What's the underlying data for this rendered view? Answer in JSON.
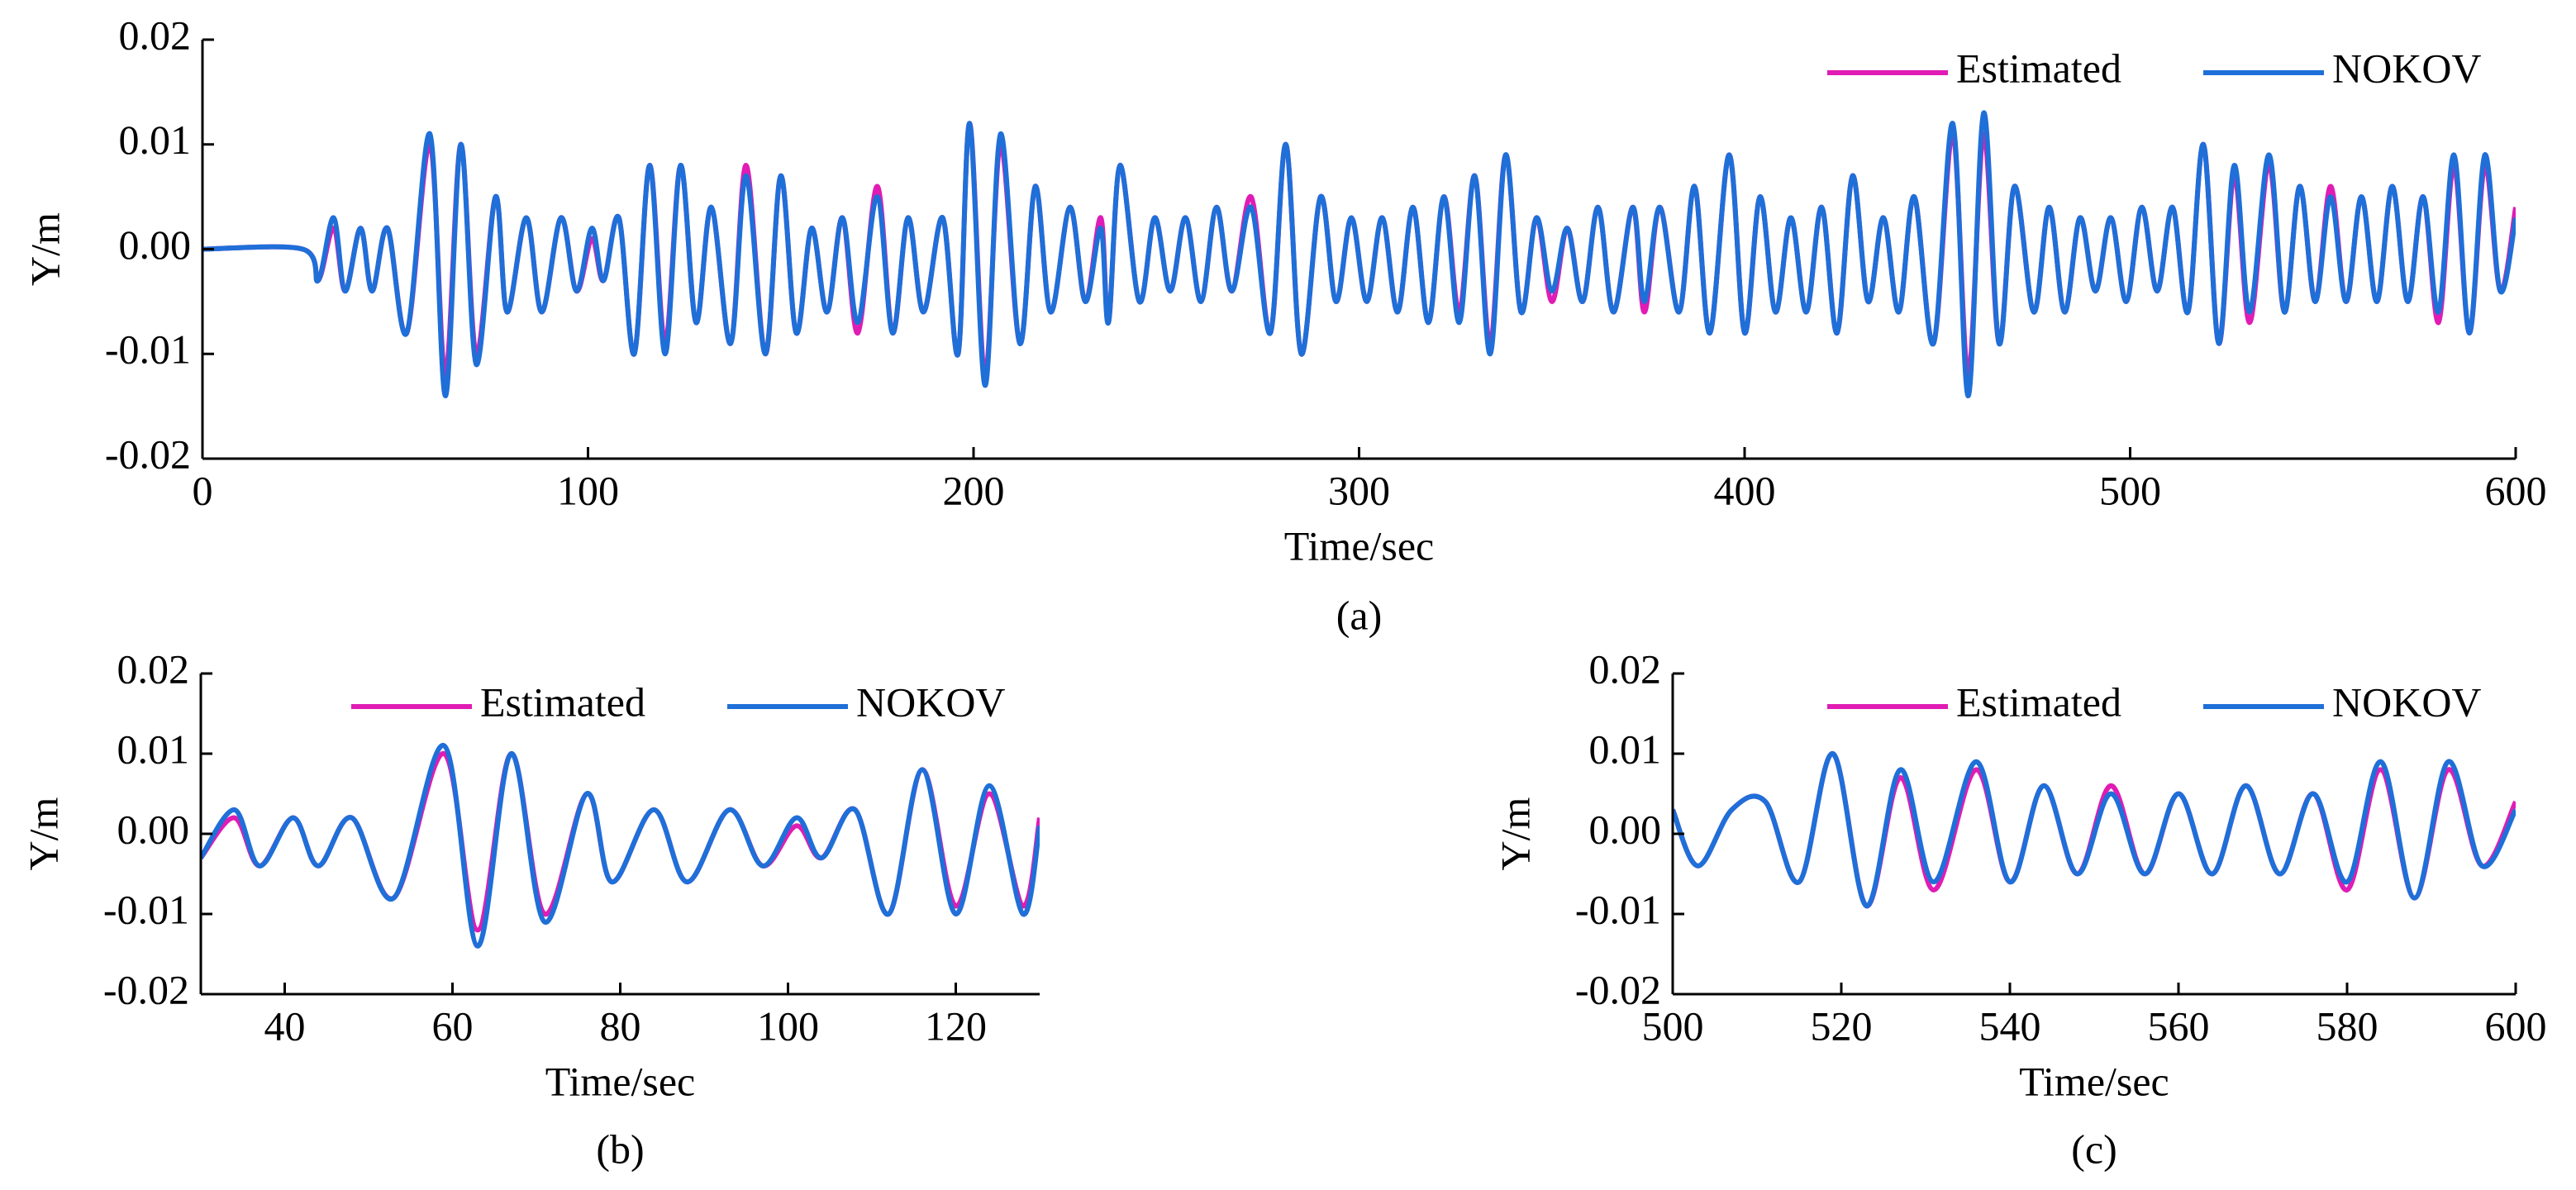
{
  "chart_data": [
    {
      "type": "line",
      "caption": "(a)",
      "xlabel": "Time/sec",
      "ylabel": "Y/m",
      "xlim": [
        0,
        600
      ],
      "xticks": [
        0,
        100,
        200,
        300,
        400,
        500,
        600
      ],
      "ylim": [
        -0.02,
        0.02
      ],
      "yticks": [
        -0.02,
        -0.01,
        {
          "value": 0,
          "label": "0.00"
        },
        0.01,
        0.02
      ],
      "x": [
        0,
        26,
        30,
        34,
        37,
        41,
        44,
        48,
        53,
        59,
        63,
        67,
        71,
        76,
        79,
        84,
        88,
        93,
        97,
        101,
        104,
        108,
        112,
        116,
        120,
        124,
        128,
        132,
        137,
        141,
        146,
        150,
        154,
        158,
        162,
        166,
        170,
        175,
        179,
        183,
        187,
        192,
        196,
        199,
        203,
        207,
        212,
        216,
        220,
        225,
        229,
        233,
        235,
        238,
        243,
        247,
        251,
        255,
        259,
        263,
        267,
        272,
        277,
        281,
        285,
        290,
        294,
        298,
        302,
        306,
        310,
        314,
        318,
        322,
        326,
        330,
        334,
        338,
        342,
        346,
        350,
        354,
        358,
        362,
        366,
        371,
        374,
        378,
        383,
        387,
        391,
        396,
        400,
        404,
        408,
        412,
        416,
        420,
        424,
        428,
        432,
        436,
        440,
        444,
        449,
        454,
        458,
        462,
        466,
        470,
        475,
        479,
        483,
        487,
        491,
        495,
        499,
        503,
        507,
        511,
        515,
        519,
        523,
        527,
        531,
        536,
        540,
        544,
        548,
        552,
        556,
        560,
        564,
        568,
        572,
        576,
        580,
        584,
        588,
        592,
        596,
        600
      ],
      "series": [
        {
          "name": "Estimated",
          "color": "#e01cb4",
          "values": [
            0,
            0,
            -0.003,
            0.002,
            -0.004,
            0.002,
            -0.004,
            0.002,
            -0.008,
            0.01,
            -0.012,
            0.01,
            -0.01,
            0.005,
            -0.006,
            0.003,
            -0.006,
            0.003,
            -0.004,
            0.001,
            -0.003,
            0.003,
            -0.01,
            0.008,
            -0.009,
            0.008,
            -0.007,
            0.004,
            -0.009,
            0.008,
            -0.01,
            0.007,
            -0.008,
            0.002,
            -0.006,
            0.003,
            -0.008,
            0.006,
            -0.008,
            0.003,
            -0.006,
            0.003,
            -0.01,
            0.012,
            -0.012,
            0.01,
            -0.009,
            0.006,
            -0.006,
            0.004,
            -0.005,
            0.003,
            -0.007,
            0.008,
            -0.005,
            0.003,
            -0.004,
            0.003,
            -0.005,
            0.004,
            -0.004,
            0.005,
            -0.008,
            0.01,
            -0.01,
            0.005,
            -0.005,
            0.003,
            -0.005,
            0.003,
            -0.006,
            0.004,
            -0.007,
            0.005,
            -0.006,
            0.007,
            -0.009,
            0.009,
            -0.006,
            0.003,
            -0.005,
            0.002,
            -0.005,
            0.004,
            -0.006,
            0.004,
            -0.006,
            0.004,
            -0.006,
            0.006,
            -0.008,
            0.009,
            -0.008,
            0.005,
            -0.006,
            0.003,
            -0.006,
            0.004,
            -0.008,
            0.007,
            -0.005,
            0.003,
            -0.006,
            0.005,
            -0.009,
            0.011,
            -0.012,
            0.011,
            -0.009,
            0.006,
            -0.006,
            0.004,
            -0.006,
            0.003,
            -0.004,
            0.003,
            -0.005,
            0.004,
            -0.004,
            0.004,
            -0.006,
            0.01,
            -0.009,
            0.007,
            -0.007,
            0.008,
            -0.006,
            0.006,
            -0.005,
            0.006,
            -0.005,
            0.005,
            -0.005,
            0.006,
            -0.005,
            0.005,
            -0.007,
            0.008,
            -0.008,
            0.008,
            -0.004,
            0.004
          ]
        },
        {
          "name": "NOKOV",
          "color": "#1f6fd8",
          "values": [
            0,
            0,
            -0.003,
            0.003,
            -0.004,
            0.002,
            -0.004,
            0.002,
            -0.008,
            0.011,
            -0.014,
            0.01,
            -0.011,
            0.005,
            -0.006,
            0.003,
            -0.006,
            0.003,
            -0.004,
            0.002,
            -0.003,
            0.003,
            -0.01,
            0.008,
            -0.01,
            0.008,
            -0.007,
            0.004,
            -0.009,
            0.007,
            -0.01,
            0.007,
            -0.008,
            0.002,
            -0.006,
            0.003,
            -0.007,
            0.005,
            -0.008,
            0.003,
            -0.006,
            0.003,
            -0.01,
            0.012,
            -0.013,
            0.011,
            -0.009,
            0.006,
            -0.006,
            0.004,
            -0.005,
            0.002,
            -0.007,
            0.008,
            -0.005,
            0.003,
            -0.004,
            0.003,
            -0.005,
            0.004,
            -0.004,
            0.004,
            -0.008,
            0.01,
            -0.01,
            0.005,
            -0.005,
            0.003,
            -0.005,
            0.003,
            -0.006,
            0.004,
            -0.007,
            0.005,
            -0.007,
            0.007,
            -0.01,
            0.009,
            -0.006,
            0.003,
            -0.004,
            0.002,
            -0.005,
            0.004,
            -0.006,
            0.004,
            -0.005,
            0.004,
            -0.006,
            0.006,
            -0.008,
            0.009,
            -0.008,
            0.005,
            -0.006,
            0.003,
            -0.006,
            0.004,
            -0.008,
            0.007,
            -0.005,
            0.003,
            -0.006,
            0.005,
            -0.009,
            0.012,
            -0.014,
            0.013,
            -0.009,
            0.006,
            -0.006,
            0.004,
            -0.006,
            0.003,
            -0.004,
            0.003,
            -0.005,
            0.004,
            -0.004,
            0.004,
            -0.006,
            0.01,
            -0.009,
            0.008,
            -0.006,
            0.009,
            -0.006,
            0.006,
            -0.005,
            0.005,
            -0.005,
            0.005,
            -0.005,
            0.006,
            -0.005,
            0.005,
            -0.006,
            0.009,
            -0.008,
            0.009,
            -0.004,
            0.003
          ]
        }
      ]
    },
    {
      "type": "line",
      "caption": "(b)",
      "xlabel": "Time/sec",
      "ylabel": "Y/m",
      "xlim": [
        30,
        130
      ],
      "xticks": [
        40,
        60,
        80,
        100,
        120
      ],
      "ylim": [
        -0.02,
        0.02
      ],
      "yticks": [
        -0.02,
        -0.01,
        {
          "value": 0,
          "label": "0.00"
        },
        0.01,
        0.02
      ],
      "x": [
        30,
        34,
        37,
        41,
        44,
        48,
        53,
        59,
        63,
        67,
        71,
        76,
        79,
        84,
        88,
        93,
        97,
        101,
        104,
        108,
        112,
        116,
        120,
        124,
        128,
        130
      ],
      "series": [
        {
          "name": "Estimated",
          "color": "#e01cb4",
          "values": [
            -0.003,
            0.002,
            -0.004,
            0.002,
            -0.004,
            0.002,
            -0.008,
            0.01,
            -0.012,
            0.01,
            -0.01,
            0.005,
            -0.006,
            0.003,
            -0.006,
            0.003,
            -0.004,
            0.001,
            -0.003,
            0.003,
            -0.01,
            0.008,
            -0.009,
            0.005,
            -0.009,
            0.002
          ]
        },
        {
          "name": "NOKOV",
          "color": "#1f6fd8",
          "values": [
            -0.003,
            0.003,
            -0.004,
            0.002,
            -0.004,
            0.002,
            -0.008,
            0.011,
            -0.014,
            0.01,
            -0.011,
            0.005,
            -0.006,
            0.003,
            -0.006,
            0.003,
            -0.004,
            0.002,
            -0.003,
            0.003,
            -0.01,
            0.008,
            -0.01,
            0.006,
            -0.01,
            0.001
          ]
        }
      ]
    },
    {
      "type": "line",
      "caption": "(c)",
      "xlabel": "Time/sec",
      "ylabel": "Y/m",
      "xlim": [
        500,
        600
      ],
      "xticks": [
        500,
        520,
        540,
        560,
        580,
        600
      ],
      "ylim": [
        -0.02,
        0.02
      ],
      "yticks": [
        -0.02,
        -0.01,
        {
          "value": 0,
          "label": "0.00"
        },
        0.01,
        0.02
      ],
      "x": [
        500,
        503,
        507,
        511,
        515,
        519,
        523,
        527,
        531,
        536,
        540,
        544,
        548,
        552,
        556,
        560,
        564,
        568,
        572,
        576,
        580,
        584,
        588,
        592,
        596,
        600
      ],
      "series": [
        {
          "name": "Estimated",
          "color": "#e01cb4",
          "values": [
            0.003,
            -0.004,
            0.003,
            0.004,
            -0.006,
            0.01,
            -0.009,
            0.007,
            -0.007,
            0.008,
            -0.006,
            0.006,
            -0.005,
            0.006,
            -0.005,
            0.005,
            -0.005,
            0.006,
            -0.005,
            0.005,
            -0.007,
            0.008,
            -0.008,
            0.008,
            -0.004,
            0.004
          ]
        },
        {
          "name": "NOKOV",
          "color": "#1f6fd8",
          "values": [
            0.003,
            -0.004,
            0.003,
            0.004,
            -0.006,
            0.01,
            -0.009,
            0.008,
            -0.006,
            0.009,
            -0.006,
            0.006,
            -0.005,
            0.005,
            -0.005,
            0.005,
            -0.005,
            0.006,
            -0.005,
            0.005,
            -0.006,
            0.009,
            -0.008,
            0.009,
            -0.004,
            0.003
          ]
        }
      ]
    }
  ]
}
